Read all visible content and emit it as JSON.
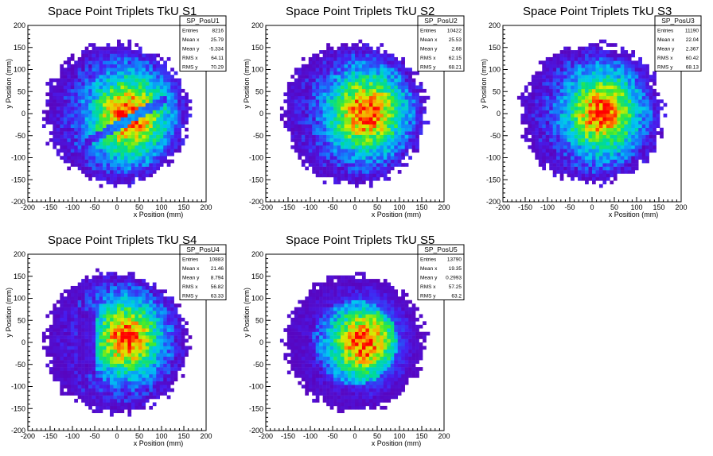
{
  "colors": {
    "background": "#ffffff",
    "axis": "#000000"
  },
  "chart_data": [
    {
      "type": "heatmap",
      "title": "Space Point Triplets TkU S1",
      "xlabel": "x Position (mm)",
      "ylabel": "y Position (mm)",
      "xlim": [
        -200,
        200
      ],
      "ylim": [
        -200,
        200
      ],
      "xticks": [
        "-200",
        "-150",
        "-100",
        "-50",
        "0",
        "50",
        "100",
        "150",
        "200"
      ],
      "yticks": [
        "-200",
        "-150",
        "-100",
        "-50",
        "0",
        "50",
        "100",
        "150",
        "200"
      ],
      "stats": {
        "name": "SP_PosU1",
        "rows": [
          {
            "label": "Entries",
            "value": "8216"
          },
          {
            "label": "Mean x",
            "value": "25.79"
          },
          {
            "label": "Mean y",
            "value": "-5.334"
          },
          {
            "label": "RMS x",
            "value": "64.11"
          },
          {
            "label": "RMS y",
            "value": "70.29"
          }
        ]
      },
      "distribution": {
        "center_x": 25.79,
        "center_y": -5.334,
        "rms_x": 64.11,
        "rms_y": 70.29,
        "radius": 160,
        "gap": "diagonal"
      }
    },
    {
      "type": "heatmap",
      "title": "Space Point Triplets TkU S2",
      "xlabel": "x Position (mm)",
      "ylabel": "y Position (mm)",
      "xlim": [
        -200,
        200
      ],
      "ylim": [
        -200,
        200
      ],
      "xticks": [
        "-200",
        "-150",
        "-100",
        "-50",
        "0",
        "50",
        "100",
        "150",
        "200"
      ],
      "yticks": [
        "-200",
        "-150",
        "-100",
        "-50",
        "0",
        "50",
        "100",
        "150",
        "200"
      ],
      "stats": {
        "name": "SP_PosU2",
        "rows": [
          {
            "label": "Entries",
            "value": "10422"
          },
          {
            "label": "Mean x",
            "value": "25.53"
          },
          {
            "label": "Mean y",
            "value": "2.68"
          },
          {
            "label": "RMS x",
            "value": "62.15"
          },
          {
            "label": "RMS y",
            "value": "68.21"
          }
        ]
      },
      "distribution": {
        "center_x": 25.53,
        "center_y": 2.68,
        "rms_x": 62.15,
        "rms_y": 68.21,
        "radius": 160,
        "gap": "none"
      }
    },
    {
      "type": "heatmap",
      "title": "Space Point Triplets TkU S3",
      "xlabel": "x Position (mm)",
      "ylabel": "y Position (mm)",
      "xlim": [
        -200,
        200
      ],
      "ylim": [
        -200,
        200
      ],
      "xticks": [
        "-200",
        "-150",
        "-100",
        "-50",
        "0",
        "50",
        "100",
        "150",
        "200"
      ],
      "yticks": [
        "-200",
        "-150",
        "-100",
        "-50",
        "0",
        "50",
        "100",
        "150",
        "200"
      ],
      "stats": {
        "name": "SP_PosU3",
        "rows": [
          {
            "label": "Entries",
            "value": "11190"
          },
          {
            "label": "Mean x",
            "value": "22.04"
          },
          {
            "label": "Mean y",
            "value": "2.367"
          },
          {
            "label": "RMS x",
            "value": "60.42"
          },
          {
            "label": "RMS y",
            "value": "68.13"
          }
        ]
      },
      "distribution": {
        "center_x": 22.04,
        "center_y": 2.367,
        "rms_x": 60.42,
        "rms_y": 68.13,
        "radius": 158,
        "gap": "none"
      }
    },
    {
      "type": "heatmap",
      "title": "Space Point Triplets TkU S4",
      "xlabel": "x Position (mm)",
      "ylabel": "y Position (mm)",
      "xlim": [
        -200,
        200
      ],
      "ylim": [
        -200,
        200
      ],
      "xticks": [
        "-200",
        "-150",
        "-100",
        "-50",
        "0",
        "50",
        "100",
        "150",
        "200"
      ],
      "yticks": [
        "-200",
        "-150",
        "-100",
        "-50",
        "0",
        "50",
        "100",
        "150",
        "200"
      ],
      "stats": {
        "name": "SP_PosU4",
        "rows": [
          {
            "label": "Entries",
            "value": "10883"
          },
          {
            "label": "Mean x",
            "value": "21.46"
          },
          {
            "label": "Mean y",
            "value": "8.794"
          },
          {
            "label": "RMS x",
            "value": "56.82"
          },
          {
            "label": "RMS y",
            "value": "63.33"
          }
        ]
      },
      "distribution": {
        "center_x": 21.46,
        "center_y": 8.794,
        "rms_x": 56.82,
        "rms_y": 63.33,
        "radius": 160,
        "gap": "left"
      }
    },
    {
      "type": "heatmap",
      "title": "Space Point Triplets TkU S5",
      "xlabel": "x Position (mm)",
      "ylabel": "y Position (mm)",
      "xlim": [
        -200,
        200
      ],
      "ylim": [
        -200,
        200
      ],
      "xticks": [
        "-200",
        "-150",
        "-100",
        "-50",
        "0",
        "50",
        "100",
        "150",
        "200"
      ],
      "yticks": [
        "-200",
        "-150",
        "-100",
        "-50",
        "0",
        "50",
        "100",
        "150",
        "200"
      ],
      "stats": {
        "name": "SP_PosU5",
        "rows": [
          {
            "label": "Entries",
            "value": "13790"
          },
          {
            "label": "Mean x",
            "value": "19.35"
          },
          {
            "label": "Mean y",
            "value": "0.2993"
          },
          {
            "label": "RMS x",
            "value": "57.25"
          },
          {
            "label": "RMS y",
            "value": "63.2"
          }
        ]
      },
      "distribution": {
        "center_x": 19.35,
        "center_y": 0.2993,
        "rms_x": 57.25,
        "rms_y": 63.2,
        "radius": 155,
        "gap": "ring"
      }
    }
  ]
}
